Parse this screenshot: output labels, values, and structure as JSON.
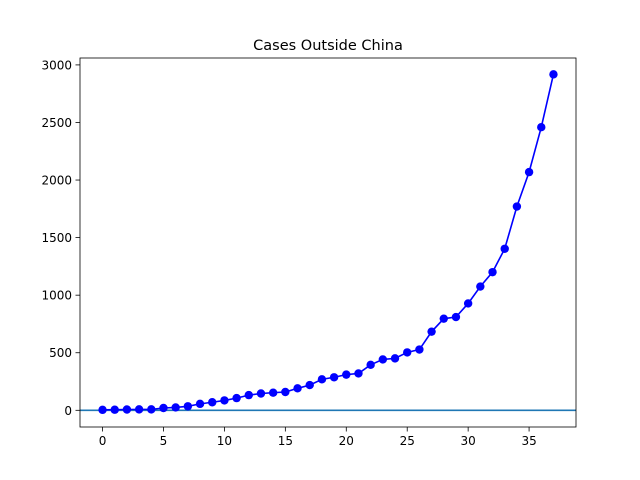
{
  "chart_data": {
    "type": "line",
    "title": "Cases Outside China",
    "xlabel": "",
    "ylabel": "",
    "xlim": [
      -1.85,
      38.85
    ],
    "ylim": [
      -145,
      3060
    ],
    "xticks": [
      0,
      5,
      10,
      15,
      20,
      25,
      30,
      35
    ],
    "yticks": [
      0,
      500,
      1000,
      1500,
      2000,
      2500,
      3000
    ],
    "grid": false,
    "hline": {
      "y": 0,
      "color": "#1f77b4"
    },
    "series": [
      {
        "color": "#0000ff",
        "marker": "circle",
        "x": [
          0,
          1,
          2,
          3,
          4,
          5,
          6,
          7,
          8,
          9,
          10,
          11,
          12,
          13,
          14,
          15,
          16,
          17,
          18,
          19,
          20,
          21,
          22,
          23,
          24,
          25,
          26,
          27,
          28,
          29,
          30,
          31,
          32,
          33,
          34,
          35,
          36,
          37
        ],
        "values": [
          4,
          5,
          7,
          8,
          8,
          20,
          25,
          35,
          56,
          70,
          86,
          106,
          132,
          146,
          153,
          159,
          191,
          219,
          269,
          287,
          310,
          320,
          395,
          442,
          451,
          503,
          528,
          683,
          796,
          810,
          928,
          1075,
          1200,
          1403,
          1770,
          2069,
          2459,
          2918
        ]
      }
    ]
  }
}
